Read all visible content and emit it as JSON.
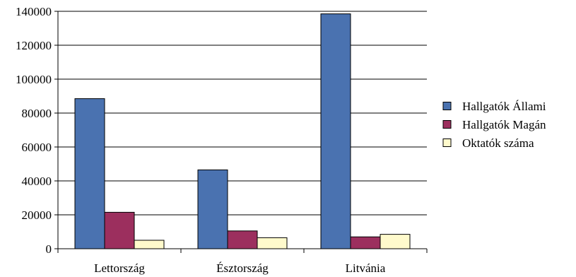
{
  "chart_data": {
    "type": "bar",
    "categories": [
      "Lettország",
      "Észtország",
      "Litvánia"
    ],
    "series": [
      {
        "name": "Hallgatók Állami",
        "values": [
          88500,
          46500,
          138500
        ],
        "color": "#4a72b0"
      },
      {
        "name": "Hallgatók Magán",
        "values": [
          21500,
          10500,
          7000
        ],
        "color": "#9c2f5e"
      },
      {
        "name": "Oktatók száma",
        "values": [
          5000,
          6500,
          8500
        ],
        "color": "#fffacc"
      }
    ],
    "ylim": [
      0,
      140000
    ],
    "yticks": [
      0,
      20000,
      40000,
      60000,
      80000,
      100000,
      120000,
      140000
    ],
    "grid": true,
    "legend_position": "right",
    "title": "",
    "xlabel": "",
    "ylabel": ""
  }
}
